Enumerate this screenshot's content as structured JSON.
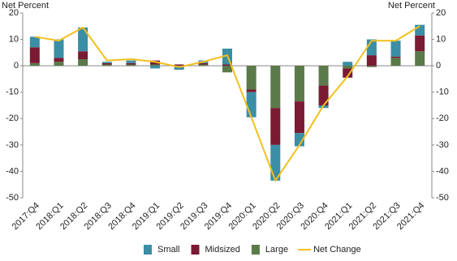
{
  "chart_data": {
    "type": "bar",
    "ylabel": "Net Percent",
    "y2label": "Net Percent",
    "categories": [
      "2017:Q4",
      "2018:Q1",
      "2018:Q2",
      "2018:Q3",
      "2018:Q4",
      "2019:Q1",
      "2019:Q2",
      "2019:Q3",
      "2019:Q4",
      "2020:Q1",
      "2020:Q2",
      "2020:Q3",
      "2020:Q4",
      "2021:Q1",
      "2021:Q2",
      "2021:Q3",
      "2021:Q4"
    ],
    "series": [
      {
        "name": "Large",
        "type": "bar",
        "color": "#5a7a4a",
        "values": [
          1,
          1.5,
          2.5,
          0.5,
          0.5,
          0.5,
          0,
          0.5,
          -2.5,
          -9,
          -16,
          -13.5,
          -7.5,
          -1,
          -0.5,
          3,
          5.5
        ]
      },
      {
        "name": "Midsized",
        "type": "bar",
        "color": "#7b1a33",
        "values": [
          6,
          1.5,
          3,
          0.5,
          0.5,
          1.5,
          0.5,
          0.5,
          0.5,
          -1,
          -14,
          -12,
          -7.5,
          -3.5,
          4,
          0.5,
          6
        ]
      },
      {
        "name": "Small",
        "type": "bar",
        "color": "#3a8ea5",
        "values": [
          4,
          7,
          9,
          0.5,
          1,
          -1,
          -1.5,
          1,
          6,
          -9.5,
          -13.5,
          -5,
          -1,
          1.5,
          6,
          6,
          4
        ]
      },
      {
        "name": "Net Change",
        "type": "line",
        "color": "#f2c01e",
        "values": [
          11,
          9.5,
          14.5,
          2,
          2.5,
          1.5,
          -0.5,
          1.5,
          4,
          -19.5,
          -43.5,
          -30,
          -15,
          -4,
          9.5,
          9.5,
          15
        ]
      }
    ],
    "legend_order": [
      2,
      1,
      0,
      3
    ],
    "ylim": [
      -50,
      20
    ],
    "yticks": [
      -50,
      -40,
      -30,
      -20,
      -10,
      0,
      10,
      20
    ],
    "y2lim": [
      -50,
      20
    ],
    "y2ticks": [
      -50,
      -40,
      -30,
      -20,
      -10,
      0,
      10,
      20
    ]
  }
}
